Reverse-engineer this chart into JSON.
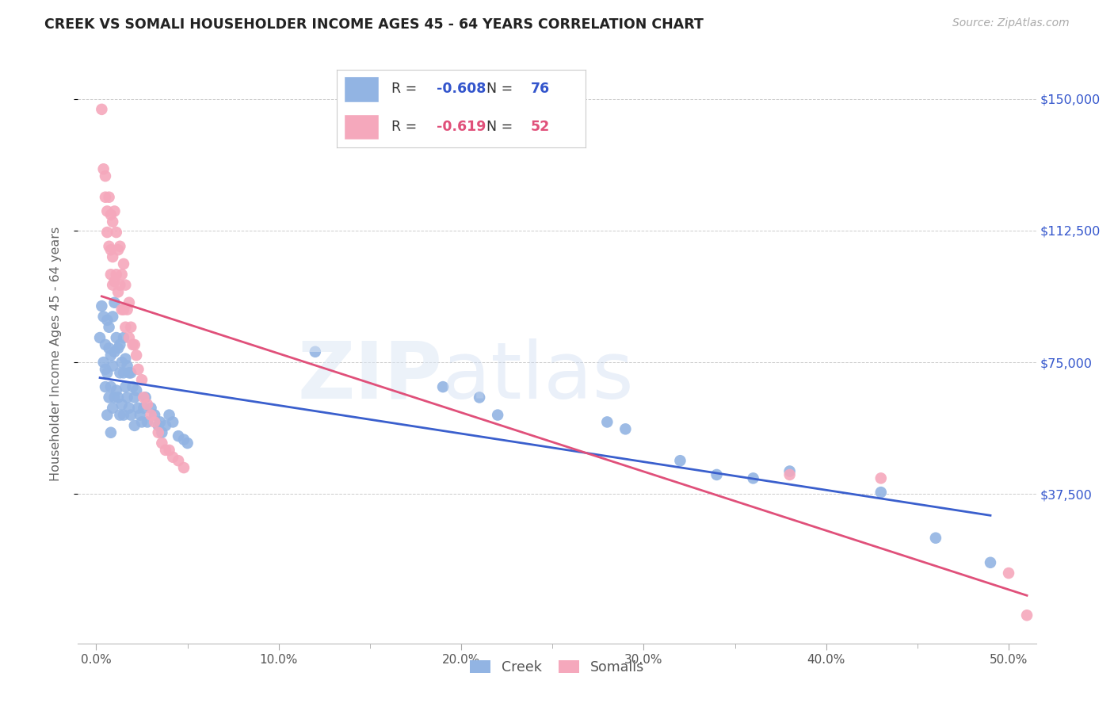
{
  "title": "CREEK VS SOMALI HOUSEHOLDER INCOME AGES 45 - 64 YEARS CORRELATION CHART",
  "source": "Source: ZipAtlas.com",
  "ylabel_label": "Householder Income Ages 45 - 64 years",
  "xlabel_ticks": [
    "0.0%",
    "10.0%",
    "20.0%",
    "30.0%",
    "40.0%",
    "50.0%"
  ],
  "xlabel_vals": [
    0.0,
    0.1,
    0.2,
    0.3,
    0.4,
    0.5
  ],
  "ylabel_ticks": [
    "$37,500",
    "$75,000",
    "$112,500",
    "$150,000"
  ],
  "ylabel_vals": [
    37500,
    75000,
    112500,
    150000
  ],
  "xlim": [
    -0.01,
    0.515
  ],
  "ylim": [
    -5000,
    160000
  ],
  "creek_R": "-0.608",
  "creek_N": "76",
  "somali_R": "-0.619",
  "somali_N": "52",
  "creek_color": "#92b4e3",
  "somali_color": "#f5a8bc",
  "creek_line_color": "#3a5fcd",
  "somali_line_color": "#e0507a",
  "creek_x": [
    0.002,
    0.003,
    0.004,
    0.004,
    0.005,
    0.005,
    0.005,
    0.006,
    0.006,
    0.006,
    0.007,
    0.007,
    0.007,
    0.008,
    0.008,
    0.008,
    0.009,
    0.009,
    0.009,
    0.01,
    0.01,
    0.01,
    0.011,
    0.011,
    0.012,
    0.012,
    0.013,
    0.013,
    0.013,
    0.014,
    0.014,
    0.015,
    0.015,
    0.015,
    0.016,
    0.016,
    0.017,
    0.017,
    0.018,
    0.018,
    0.019,
    0.019,
    0.02,
    0.021,
    0.021,
    0.022,
    0.023,
    0.024,
    0.025,
    0.026,
    0.027,
    0.028,
    0.03,
    0.032,
    0.034,
    0.035,
    0.036,
    0.038,
    0.04,
    0.042,
    0.045,
    0.048,
    0.05,
    0.12,
    0.19,
    0.21,
    0.22,
    0.28,
    0.29,
    0.32,
    0.34,
    0.36,
    0.38,
    0.43,
    0.46,
    0.49
  ],
  "creek_y": [
    82000,
    91000,
    75000,
    88000,
    80000,
    73000,
    68000,
    87000,
    72000,
    60000,
    85000,
    79000,
    65000,
    77000,
    68000,
    55000,
    88000,
    74000,
    62000,
    92000,
    78000,
    65000,
    82000,
    67000,
    79000,
    65000,
    80000,
    72000,
    60000,
    75000,
    63000,
    82000,
    72000,
    60000,
    76000,
    68000,
    74000,
    65000,
    72000,
    62000,
    72000,
    60000,
    68000,
    65000,
    57000,
    67000,
    62000,
    60000,
    58000,
    62000,
    65000,
    58000,
    62000,
    60000,
    57000,
    58000,
    55000,
    57000,
    60000,
    58000,
    54000,
    53000,
    52000,
    78000,
    68000,
    65000,
    60000,
    58000,
    56000,
    47000,
    43000,
    42000,
    44000,
    38000,
    25000,
    18000
  ],
  "somali_x": [
    0.003,
    0.004,
    0.005,
    0.005,
    0.006,
    0.006,
    0.007,
    0.007,
    0.008,
    0.008,
    0.008,
    0.009,
    0.009,
    0.009,
    0.01,
    0.01,
    0.011,
    0.011,
    0.012,
    0.012,
    0.013,
    0.013,
    0.014,
    0.014,
    0.015,
    0.015,
    0.016,
    0.016,
    0.017,
    0.018,
    0.018,
    0.019,
    0.02,
    0.021,
    0.022,
    0.023,
    0.025,
    0.026,
    0.028,
    0.03,
    0.032,
    0.034,
    0.036,
    0.038,
    0.04,
    0.042,
    0.045,
    0.048,
    0.38,
    0.43,
    0.5,
    0.51
  ],
  "somali_y": [
    147000,
    130000,
    128000,
    122000,
    118000,
    112000,
    122000,
    108000,
    117000,
    107000,
    100000,
    115000,
    105000,
    97000,
    118000,
    98000,
    112000,
    100000,
    107000,
    95000,
    108000,
    97000,
    100000,
    90000,
    103000,
    90000,
    97000,
    85000,
    90000,
    92000,
    82000,
    85000,
    80000,
    80000,
    77000,
    73000,
    70000,
    65000,
    63000,
    60000,
    58000,
    55000,
    52000,
    50000,
    50000,
    48000,
    47000,
    45000,
    43000,
    42000,
    15000,
    3000
  ]
}
